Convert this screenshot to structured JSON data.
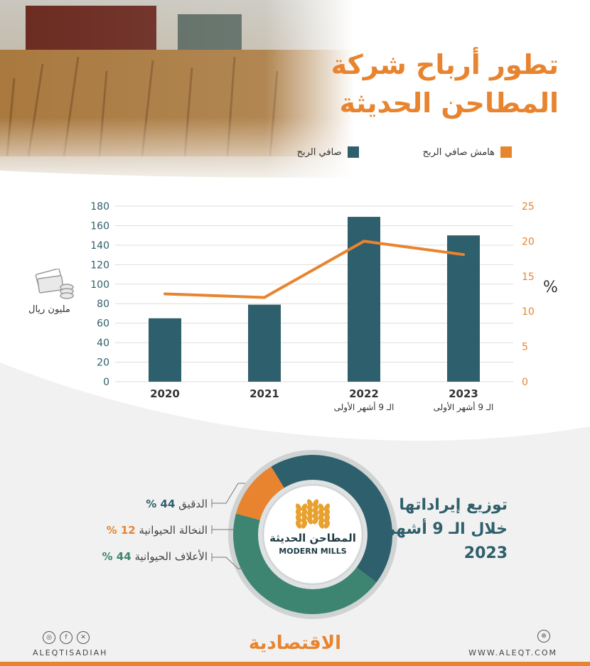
{
  "title_line1": "تطور أرباح شركة",
  "title_line2": "المطاحن الحديثة",
  "legend": {
    "margin": "هامش صافي الربح",
    "profit": "صافي الربح"
  },
  "unit_label": "مليون ريال",
  "pct_label": "%",
  "colors": {
    "bar": "#2e5f6c",
    "line": "#e8842f",
    "green": "#3d8471"
  },
  "chart_data": {
    "type": "bar",
    "categories": [
      "2020",
      "2021",
      "2022",
      "2023"
    ],
    "category_notes": [
      "",
      "",
      "الـ 9 أشهر الأولى",
      "الـ 9 أشهر الأولى"
    ],
    "series": [
      {
        "name": "صافي الربح",
        "type": "bar",
        "axis": "left",
        "values": [
          65,
          79,
          169,
          150
        ]
      },
      {
        "name": "هامش صافي الربح",
        "type": "line",
        "axis": "right",
        "values": [
          12.5,
          12,
          20,
          18.1
        ]
      }
    ],
    "ylim_left": [
      0,
      180
    ],
    "yticks_left": [
      0,
      20,
      40,
      60,
      80,
      100,
      120,
      140,
      160,
      180
    ],
    "ylim_right": [
      0,
      25
    ],
    "yticks_right": [
      0,
      5,
      10,
      15,
      20,
      25
    ],
    "grid": true
  },
  "donut": {
    "title_line1": "توزيع إيراداتها",
    "title_line2": "خلال الـ 9 أشهر",
    "title_line3": "2023",
    "logo_ar": "المطاحن الحديثة",
    "logo_en": "MODERN MILLS",
    "segments": [
      {
        "label": "الدقيق",
        "value": 44,
        "pct_text": "44 %",
        "color": "#2e5f6c"
      },
      {
        "label": "النخالة الحيوانية",
        "value": 12,
        "pct_text": "12 %",
        "color": "#e8842f"
      },
      {
        "label": "الأعلاف الحيوانية",
        "value": 44,
        "pct_text": "44 %",
        "color": "#3d8471"
      }
    ]
  },
  "footer": {
    "left": "ALEQTISADIAH",
    "brand": "الاقتصادية",
    "right": "WWW.ALEQT.COM",
    "social": [
      "ig-icon",
      "facebook-icon",
      "x-icon"
    ]
  }
}
